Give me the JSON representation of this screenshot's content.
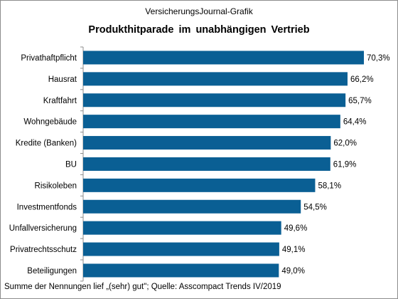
{
  "header": {
    "supertitle": "VersicherungsJournal-Grafik",
    "title": "Produkthitparade  im unabhängigen  Vertrieb"
  },
  "footer": {
    "note": "Summe der Nennungen  lief „(sehr) gut\"; Quelle: Asscompact Trends IV/2019"
  },
  "colors": {
    "bar": "#0a5f94",
    "axis": "#8c8c8c"
  },
  "chart_data": {
    "type": "bar",
    "orientation": "horizontal",
    "title": "Produkthitparade  im unabhängigen  Vertrieb",
    "categories": [
      "Privathaftpflicht",
      "Hausrat",
      "Kraftfahrt",
      "Wohngebäude",
      "Kredite (Banken)",
      "BU",
      "Risikoleben",
      "Investmentfonds",
      "Unfallversicherung",
      "Privatrechtsschutz",
      "Beteiligungen"
    ],
    "values": [
      70.3,
      66.2,
      65.7,
      64.4,
      62.0,
      61.9,
      58.1,
      54.5,
      49.6,
      49.1,
      49.0
    ],
    "value_labels": [
      "70,3%",
      "66,2%",
      "65,7%",
      "64,4%",
      "62,0%",
      "61,9%",
      "58,1%",
      "54,5%",
      "49,6%",
      "49,1%",
      "49,0%"
    ],
    "xlim": [
      0,
      70.3
    ],
    "grid": false,
    "legend": "none"
  }
}
